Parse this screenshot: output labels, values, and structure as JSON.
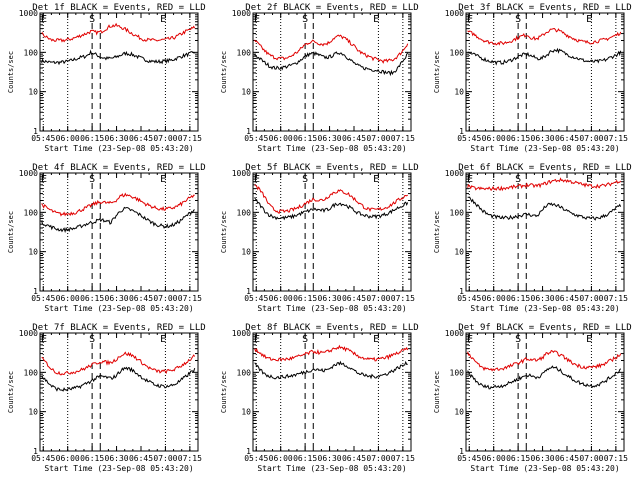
{
  "chart_data": [
    {
      "type": "line",
      "title": "Det 1f BLACK = Events, RED = LLD",
      "ylabel": "Counts/sec",
      "xlabel": "Start Time (23-Sep-08 05:43:20)",
      "x_ticks": [
        "05:45",
        "06:00",
        "06:15",
        "06:30",
        "06:45",
        "07:00",
        "07:15"
      ],
      "y_ticks": [
        "1",
        "10",
        "100",
        "1000"
      ],
      "yscale": "log",
      "ylim": [
        1,
        1000
      ],
      "series": [
        {
          "color": "#000000",
          "values": [
            60,
            58,
            55,
            55,
            56,
            58,
            62,
            68,
            75,
            80,
            100,
            88,
            75,
            70,
            70,
            75,
            85,
            95,
            90,
            82,
            72,
            65,
            60,
            58,
            58,
            60,
            62,
            68,
            76,
            84,
            92,
            100
          ]
        },
        {
          "color": "#e00000",
          "values": [
            300,
            240,
            205,
            200,
            200,
            205,
            220,
            240,
            270,
            300,
            340,
            320,
            330,
            400,
            470,
            480,
            440,
            380,
            320,
            270,
            230,
            210,
            205,
            200,
            205,
            210,
            220,
            240,
            280,
            330,
            380,
            430
          ]
        }
      ],
      "markers": {
        "dotted": [
          "05:45",
          "06:00",
          "07:00",
          "07:15"
        ],
        "dashed": [
          "06:15",
          "06:20"
        ]
      },
      "annotations": [
        "E",
        "S",
        "E"
      ]
    },
    {
      "type": "line",
      "title": "Det 2f BLACK = Events, RED = LLD",
      "ylabel": "Counts/sec",
      "xlabel": "Start Time (23-Sep-08 05:43:20)",
      "x_ticks": [
        "05:45",
        "06:00",
        "06:15",
        "06:30",
        "06:45",
        "07:00",
        "07:15"
      ],
      "y_ticks": [
        "1",
        "10",
        "100",
        "1000"
      ],
      "yscale": "log",
      "ylim": [
        1,
        1000
      ],
      "series": [
        {
          "color": "#000000",
          "values": [
            85,
            70,
            55,
            45,
            40,
            40,
            42,
            45,
            50,
            60,
            75,
            90,
            95,
            85,
            75,
            75,
            85,
            100,
            90,
            70,
            55,
            45,
            40,
            38,
            36,
            35,
            32,
            30,
            30,
            40,
            60,
            90
          ]
        },
        {
          "color": "#e00000",
          "values": [
            200,
            150,
            110,
            85,
            75,
            70,
            70,
            75,
            90,
            110,
            150,
            180,
            190,
            170,
            160,
            175,
            230,
            260,
            240,
            190,
            150,
            110,
            90,
            80,
            70,
            65,
            60,
            60,
            65,
            80,
            110,
            170
          ]
        }
      ],
      "markers": {
        "dotted": [
          "05:45",
          "06:00",
          "07:00",
          "07:15"
        ],
        "dashed": [
          "06:15",
          "06:20"
        ]
      },
      "annotations": [
        "E",
        "S",
        "E"
      ]
    },
    {
      "type": "line",
      "title": "Det 3f BLACK = Events, RED = LLD",
      "ylabel": "Counts/sec",
      "xlabel": "Start Time (23-Sep-08 05:43:20)",
      "x_ticks": [
        "05:45",
        "06:00",
        "06:15",
        "06:30",
        "06:45",
        "07:00",
        "07:15"
      ],
      "y_ticks": [
        "1",
        "10",
        "100",
        "1000"
      ],
      "yscale": "log",
      "ylim": [
        1,
        1000
      ],
      "series": [
        {
          "color": "#000000",
          "values": [
            100,
            90,
            80,
            70,
            62,
            58,
            55,
            55,
            58,
            65,
            75,
            85,
            90,
            80,
            70,
            70,
            85,
            110,
            115,
            105,
            90,
            80,
            72,
            65,
            60,
            58,
            58,
            60,
            65,
            75,
            85,
            100
          ]
        },
        {
          "color": "#e00000",
          "values": [
            340,
            300,
            250,
            210,
            185,
            175,
            170,
            170,
            180,
            200,
            230,
            260,
            280,
            230,
            220,
            260,
            330,
            380,
            370,
            330,
            280,
            240,
            210,
            190,
            180,
            180,
            190,
            200,
            215,
            240,
            270,
            320
          ]
        }
      ],
      "markers": {
        "dotted": [
          "05:45",
          "06:00",
          "07:00",
          "07:15"
        ],
        "dashed": [
          "06:15",
          "06:20"
        ]
      },
      "annotations": [
        "E",
        "S",
        "E"
      ]
    },
    {
      "type": "line",
      "title": "Det 4f BLACK = Events, RED = LLD",
      "ylabel": "Counts/sec",
      "xlabel": "Start Time (23-Sep-08 05:43:20)",
      "x_ticks": [
        "05:45",
        "06:00",
        "06:15",
        "06:30",
        "06:45",
        "07:00",
        "07:15"
      ],
      "y_ticks": [
        "1",
        "10",
        "100",
        "1000"
      ],
      "yscale": "log",
      "ylim": [
        1,
        1000
      ],
      "series": [
        {
          "color": "#000000",
          "values": [
            55,
            48,
            42,
            38,
            36,
            36,
            38,
            40,
            45,
            50,
            55,
            60,
            65,
            60,
            55,
            80,
            110,
            125,
            115,
            100,
            85,
            70,
            58,
            50,
            46,
            44,
            45,
            50,
            60,
            75,
            95,
            120
          ]
        },
        {
          "color": "#e00000",
          "values": [
            160,
            130,
            110,
            95,
            90,
            90,
            95,
            100,
            115,
            130,
            150,
            170,
            185,
            175,
            170,
            200,
            260,
            280,
            260,
            230,
            195,
            165,
            145,
            130,
            122,
            120,
            125,
            135,
            155,
            190,
            230,
            280
          ]
        }
      ],
      "markers": {
        "dotted": [
          "05:45",
          "06:00",
          "07:00",
          "07:15"
        ],
        "dashed": [
          "06:15",
          "06:20"
        ]
      },
      "annotations": [
        "E",
        "S",
        "E"
      ]
    },
    {
      "type": "line",
      "title": "Det 5f BLACK = Events, RED = LLD",
      "ylabel": "Counts/sec",
      "xlabel": "Start Time (23-Sep-08 05:43:20)",
      "x_ticks": [
        "05:45",
        "06:00",
        "06:15",
        "06:30",
        "06:45",
        "07:00",
        "07:15"
      ],
      "y_ticks": [
        "1",
        "10",
        "100",
        "1000"
      ],
      "yscale": "log",
      "ylim": [
        1,
        1000
      ],
      "series": [
        {
          "color": "#000000",
          "values": [
            220,
            160,
            110,
            85,
            75,
            72,
            72,
            75,
            80,
            90,
            100,
            110,
            120,
            115,
            110,
            120,
            150,
            170,
            160,
            140,
            115,
            95,
            85,
            80,
            78,
            80,
            85,
            95,
            110,
            130,
            150,
            175
          ]
        },
        {
          "color": "#e00000",
          "values": [
            500,
            380,
            250,
            150,
            115,
            105,
            105,
            110,
            120,
            135,
            160,
            190,
            220,
            200,
            210,
            260,
            320,
            350,
            330,
            290,
            230,
            180,
            140,
            120,
            115,
            118,
            125,
            140,
            165,
            200,
            240,
            290
          ]
        }
      ],
      "markers": {
        "dotted": [
          "05:45",
          "06:00",
          "07:00",
          "07:15"
        ],
        "dashed": [
          "06:15",
          "06:20"
        ]
      },
      "annotations": [
        "E",
        "S",
        "E"
      ]
    },
    {
      "type": "line",
      "title": "Det 6f BLACK = Events, RED = LLD",
      "ylabel": "Counts/sec",
      "xlabel": "Start Time (23-Sep-08 05:43:20)",
      "x_ticks": [
        "05:45",
        "06:00",
        "06:15",
        "06:30",
        "06:45",
        "07:00",
        "07:15"
      ],
      "y_ticks": [
        "1",
        "10",
        "100",
        "1000"
      ],
      "yscale": "log",
      "ylim": [
        1,
        1000
      ],
      "series": [
        {
          "color": "#000000",
          "values": [
            250,
            200,
            150,
            110,
            90,
            80,
            75,
            72,
            72,
            75,
            80,
            85,
            90,
            85,
            80,
            110,
            150,
            160,
            150,
            130,
            110,
            95,
            85,
            78,
            72,
            70,
            70,
            75,
            85,
            100,
            125,
            150
          ]
        },
        {
          "color": "#e00000",
          "values": [
            460,
            420,
            400,
            395,
            395,
            400,
            405,
            410,
            420,
            435,
            450,
            470,
            490,
            480,
            470,
            500,
            560,
            620,
            650,
            660,
            640,
            600,
            560,
            520,
            490,
            470,
            465,
            470,
            490,
            530,
            590,
            650
          ]
        }
      ],
      "markers": {
        "dotted": [
          "05:45",
          "06:00",
          "07:00",
          "07:15"
        ],
        "dashed": [
          "06:15",
          "06:20"
        ]
      },
      "annotations": [
        "E",
        "S",
        "E"
      ]
    },
    {
      "type": "line",
      "title": "Det 7f BLACK = Events, RED = LLD",
      "ylabel": "Counts/sec",
      "xlabel": "Start Time (23-Sep-08 05:43:20)",
      "x_ticks": [
        "05:45",
        "06:00",
        "06:15",
        "06:30",
        "06:45",
        "07:00",
        "07:15"
      ],
      "y_ticks": [
        "1",
        "10",
        "100",
        "1000"
      ],
      "yscale": "log",
      "ylim": [
        1,
        1000
      ],
      "series": [
        {
          "color": "#000000",
          "values": [
            80,
            60,
            45,
            38,
            36,
            36,
            38,
            40,
            45,
            52,
            60,
            70,
            80,
            75,
            70,
            80,
            110,
            130,
            120,
            100,
            80,
            65,
            55,
            48,
            45,
            44,
            45,
            50,
            60,
            75,
            95,
            120
          ]
        },
        {
          "color": "#e00000",
          "values": [
            230,
            170,
            120,
            100,
            95,
            95,
            100,
            105,
            115,
            130,
            150,
            170,
            190,
            180,
            175,
            210,
            270,
            300,
            280,
            240,
            190,
            150,
            125,
            110,
            105,
            105,
            110,
            120,
            140,
            170,
            210,
            260
          ]
        }
      ],
      "markers": {
        "dotted": [
          "05:45",
          "06:00",
          "07:00",
          "07:15"
        ],
        "dashed": [
          "06:15",
          "06:20"
        ]
      },
      "annotations": [
        "E",
        "S",
        "E"
      ]
    },
    {
      "type": "line",
      "title": "Det 8f BLACK = Events, RED = LLD",
      "ylabel": "Counts/sec",
      "xlabel": "Start Time (23-Sep-08 05:43:20)",
      "x_ticks": [
        "05:45",
        "06:00",
        "06:15",
        "06:30",
        "06:45",
        "07:00",
        "07:15"
      ],
      "y_ticks": [
        "1",
        "10",
        "100",
        "1000"
      ],
      "yscale": "log",
      "ylim": [
        1,
        1000
      ],
      "series": [
        {
          "color": "#000000",
          "values": [
            160,
            120,
            90,
            80,
            75,
            75,
            78,
            80,
            85,
            92,
            100,
            110,
            120,
            115,
            110,
            120,
            150,
            170,
            160,
            140,
            115,
            95,
            85,
            80,
            78,
            80,
            85,
            95,
            110,
            130,
            150,
            175
          ]
        },
        {
          "color": "#e00000",
          "values": [
            400,
            320,
            250,
            220,
            210,
            210,
            215,
            220,
            235,
            255,
            280,
            310,
            340,
            320,
            310,
            340,
            400,
            430,
            410,
            360,
            300,
            260,
            230,
            215,
            210,
            215,
            225,
            245,
            275,
            310,
            350,
            400
          ]
        }
      ],
      "markers": {
        "dotted": [
          "05:45",
          "06:00",
          "07:00",
          "07:15"
        ],
        "dashed": [
          "06:15",
          "06:20"
        ]
      },
      "annotations": [
        "E",
        "S",
        "E"
      ]
    },
    {
      "type": "line",
      "title": "Det 9f BLACK = Events, RED = LLD",
      "ylabel": "Counts/sec",
      "xlabel": "Start Time (23-Sep-08 05:43:20)",
      "x_ticks": [
        "05:45",
        "06:00",
        "06:15",
        "06:30",
        "06:45",
        "07:00",
        "07:15"
      ],
      "y_ticks": [
        "1",
        "10",
        "100",
        "1000"
      ],
      "yscale": "log",
      "ylim": [
        1,
        1000
      ],
      "series": [
        {
          "color": "#000000",
          "values": [
            100,
            75,
            55,
            45,
            42,
            42,
            44,
            46,
            50,
            58,
            65,
            75,
            85,
            80,
            75,
            85,
            115,
            135,
            125,
            105,
            85,
            70,
            60,
            52,
            48,
            46,
            47,
            52,
            62,
            75,
            95,
            120
          ]
        },
        {
          "color": "#e00000",
          "values": [
            320,
            230,
            160,
            130,
            120,
            118,
            120,
            125,
            135,
            150,
            170,
            190,
            220,
            210,
            200,
            230,
            300,
            330,
            310,
            270,
            220,
            180,
            155,
            140,
            135,
            135,
            140,
            150,
            170,
            200,
            240,
            290
          ]
        }
      ],
      "markers": {
        "dotted": [
          "05:45",
          "06:00",
          "07:00",
          "07:15"
        ],
        "dashed": [
          "06:15",
          "06:20"
        ]
      },
      "annotations": [
        "E",
        "S",
        "E"
      ]
    }
  ]
}
